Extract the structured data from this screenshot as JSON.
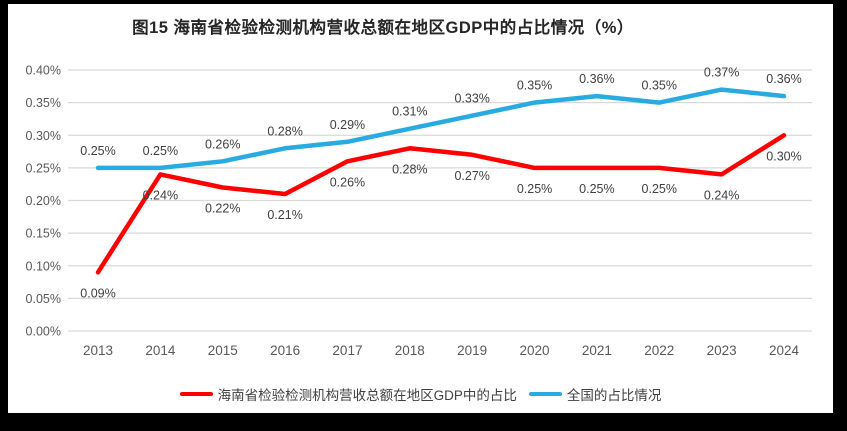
{
  "title": "图15 海南省检验检测机构营收总额在地区GDP中的占比情况（%）",
  "chart_data": {
    "type": "line",
    "title": "图15 海南省检验检测机构营收总额在地区GDP中的占比情况（%）",
    "categories": [
      "2013",
      "2014",
      "2015",
      "2016",
      "2017",
      "2018",
      "2019",
      "2020",
      "2021",
      "2022",
      "2023",
      "2024"
    ],
    "series": [
      {
        "name": "海南省检验检测机构营收总额在地区GDP中的占比",
        "color": "#FE0000",
        "values": [
          0.09,
          0.24,
          0.22,
          0.21,
          0.26,
          0.28,
          0.27,
          0.25,
          0.25,
          0.25,
          0.24,
          0.3
        ],
        "labels": [
          "0.09%",
          "0.24%",
          "0.22%",
          "0.21%",
          "0.26%",
          "0.28%",
          "0.27%",
          "0.25%",
          "0.25%",
          "0.25%",
          "0.24%",
          "0.30%"
        ],
        "label_position": "below"
      },
      {
        "name": "全国的占比情况",
        "color": "#29ABE2",
        "values": [
          0.25,
          0.25,
          0.26,
          0.28,
          0.29,
          0.31,
          0.33,
          0.35,
          0.36,
          0.35,
          0.37,
          0.36
        ],
        "labels": [
          "0.25%",
          "0.25%",
          "0.26%",
          "0.28%",
          "0.29%",
          "0.31%",
          "0.33%",
          "0.35%",
          "0.36%",
          "0.35%",
          "0.37%",
          "0.36%"
        ],
        "label_position": "above"
      }
    ],
    "y_axis": {
      "min": 0,
      "max": 0.4,
      "tick_labels": [
        "0.00%",
        "0.05%",
        "0.10%",
        "0.15%",
        "0.20%",
        "0.25%",
        "0.30%",
        "0.35%",
        "0.40%"
      ]
    },
    "x_axis": {
      "tick_labels": [
        "2013",
        "2014",
        "2015",
        "2016",
        "2017",
        "2018",
        "2019",
        "2020",
        "2021",
        "2022",
        "2023",
        "2024"
      ]
    },
    "grid": true,
    "legend_position": "bottom",
    "colors": {
      "gridline": "#D9D9D9",
      "axis_text": "#595959",
      "data_label": "#404040",
      "background": "#FFFFFF",
      "frame": "#000000"
    }
  }
}
